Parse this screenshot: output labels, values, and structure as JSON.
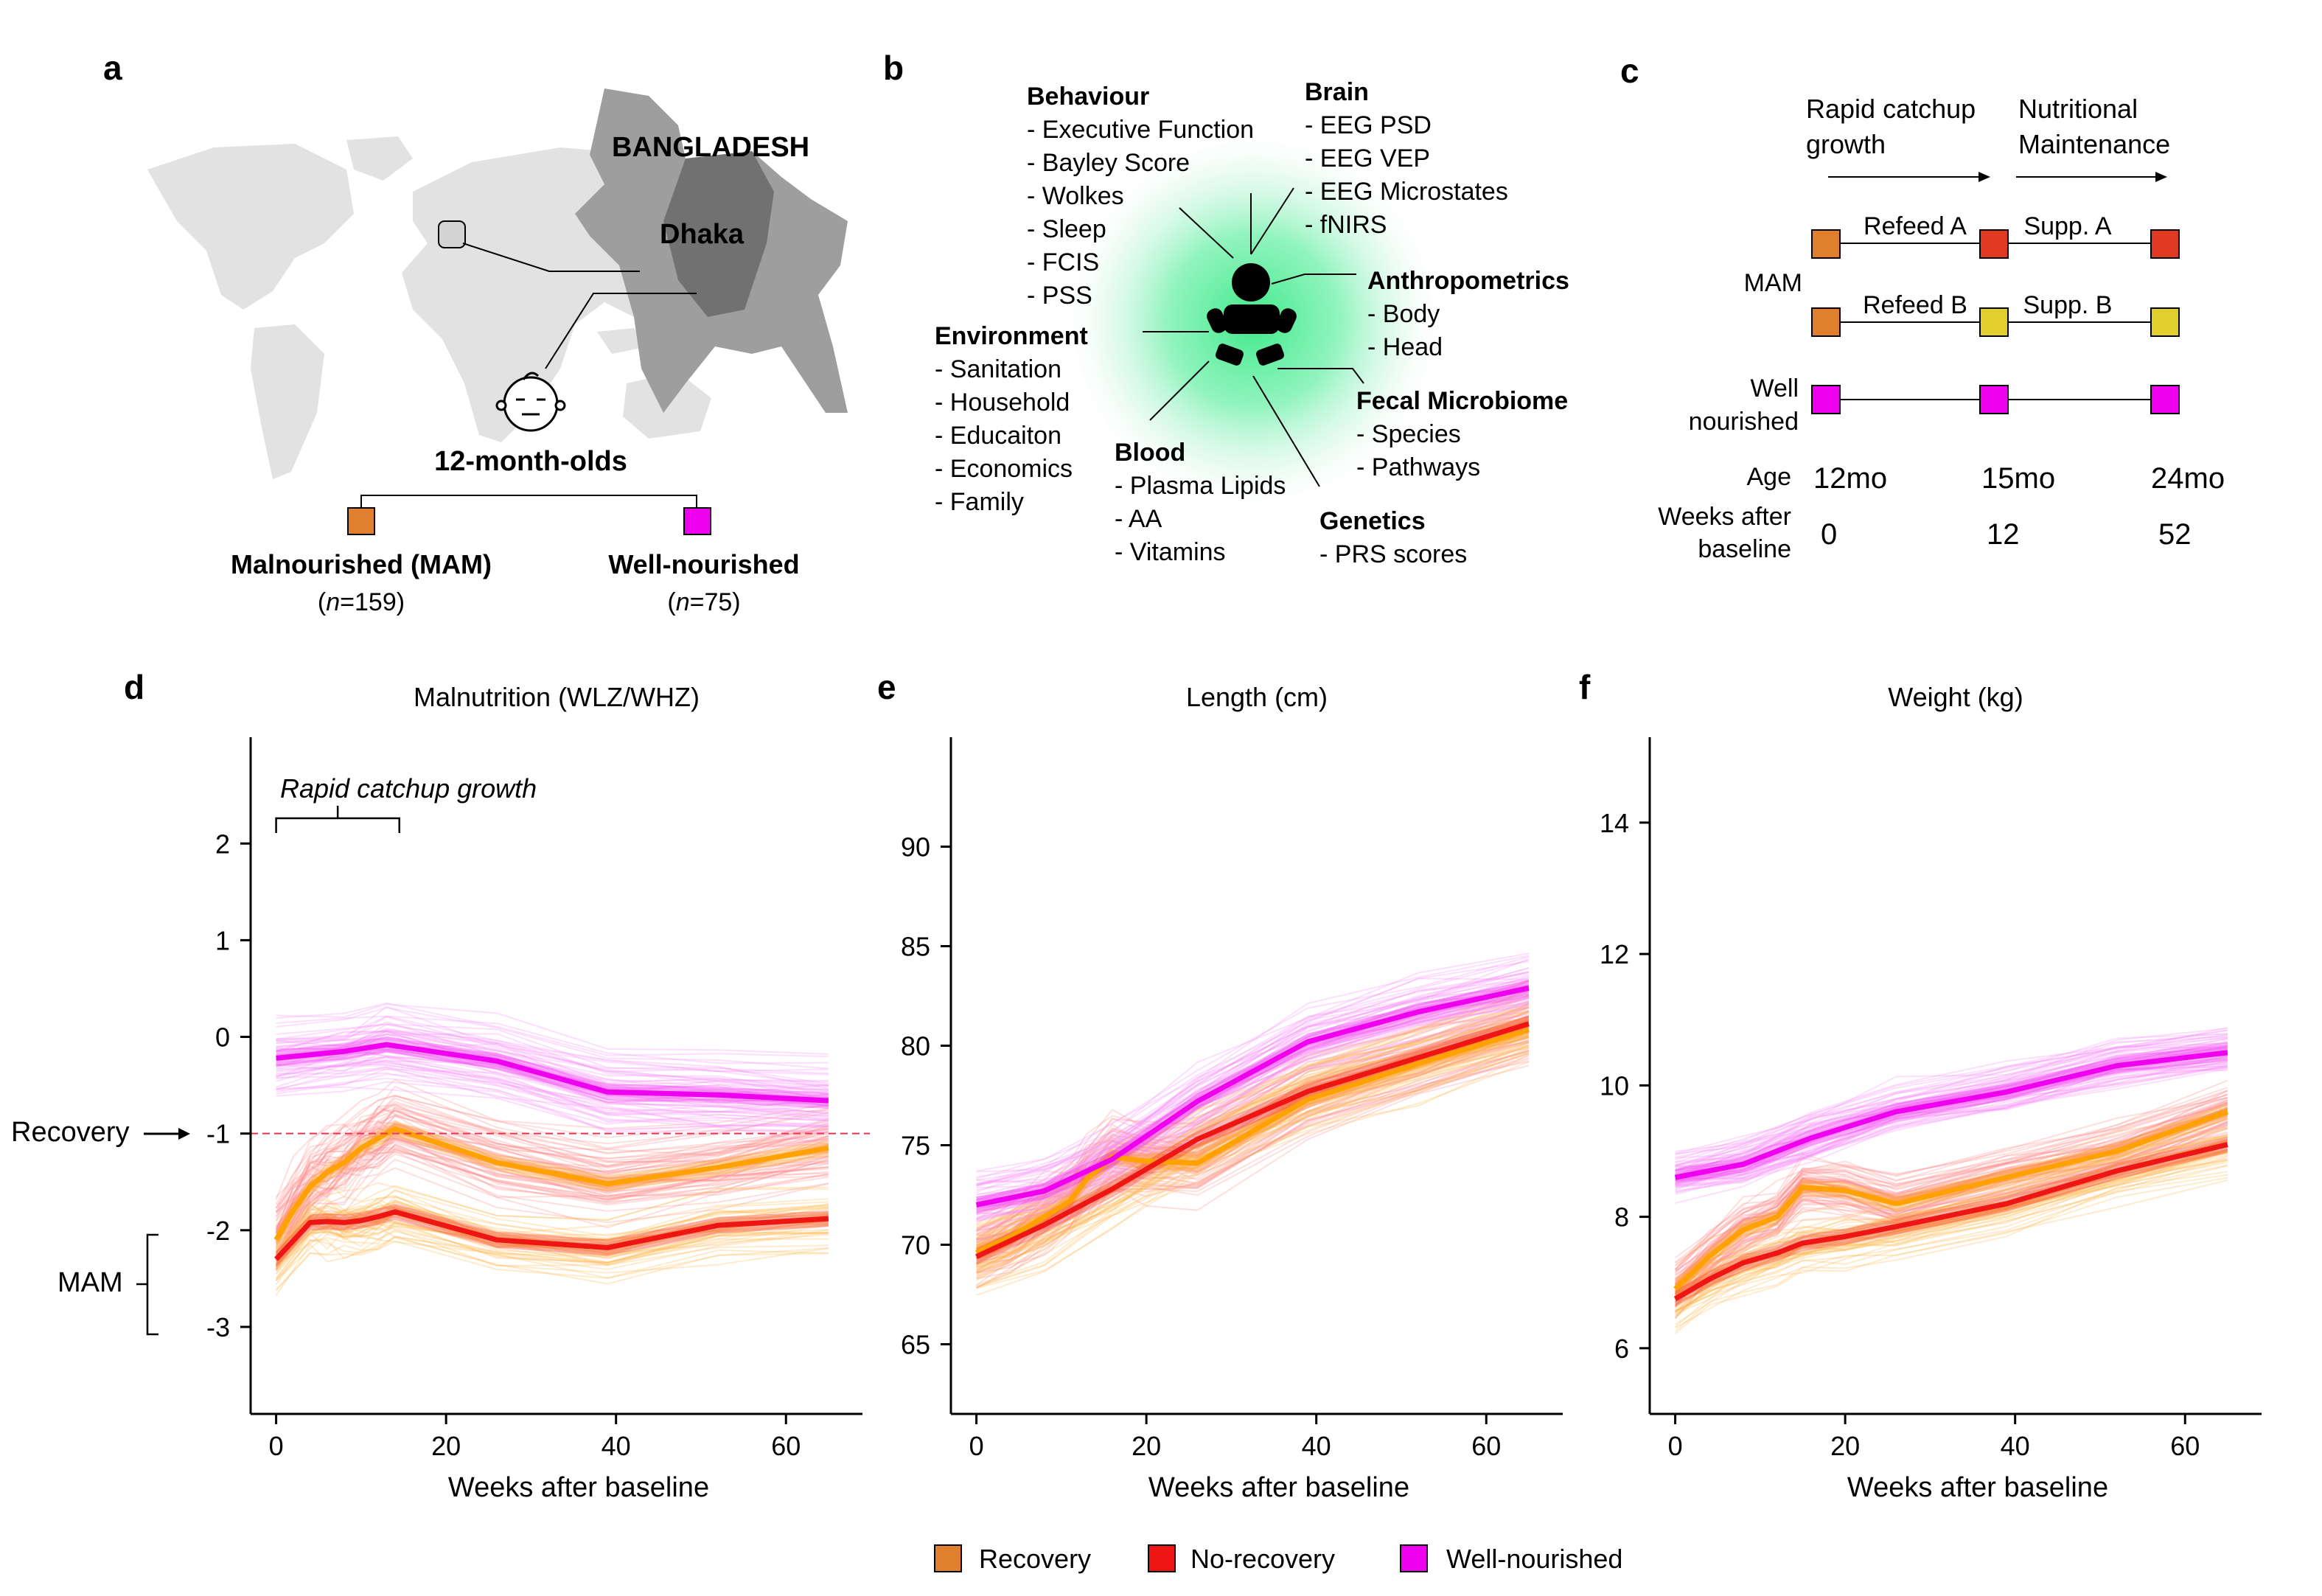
{
  "panel_letters": [
    "a",
    "b",
    "c",
    "d",
    "e",
    "f"
  ],
  "panel_a": {
    "country": "BANGLADESH",
    "city": "Dhaka",
    "cohort": "12-month-olds",
    "groups": [
      {
        "label": "Malnourished (MAM)",
        "n_prefix": "(",
        "n_italic": "n",
        "n_suffix": "=159)",
        "color": "#e07f2d"
      },
      {
        "label": "Well-nourished",
        "n_prefix": "(",
        "n_italic": "n",
        "n_suffix": "=75)",
        "color": "#ee00ee"
      }
    ]
  },
  "panel_b": {
    "groups": [
      {
        "title": "Behaviour",
        "items": [
          "- Executive Function",
          "- Bayley Score",
          "- Wolkes",
          "- Sleep",
          "- FCIS",
          "- PSS"
        ]
      },
      {
        "title": "Brain",
        "items": [
          "- EEG PSD",
          "- EEG VEP",
          "- EEG Microstates",
          "- fNIRS"
        ]
      },
      {
        "title": "Anthropometrics",
        "items": [
          "- Body",
          "- Head"
        ]
      },
      {
        "title": "Fecal Microbiome",
        "items": [
          "- Species",
          "- Pathways"
        ]
      },
      {
        "title": "Genetics",
        "items": [
          "- PRS scores"
        ]
      },
      {
        "title": "Blood",
        "items": [
          "- Plasma Lipids",
          "- AA",
          "- Vitamins"
        ]
      },
      {
        "title": "Environment",
        "items": [
          "- Sanitation",
          "- Household",
          "- Educaiton",
          "- Economics",
          "- Family"
        ]
      }
    ],
    "halo_color": "#3ee98a",
    "icon_name": "baby-icon"
  },
  "panel_c": {
    "phase1": [
      "Rapid catchup",
      "growth"
    ],
    "phase2": [
      "Nutritional",
      "Maintenance"
    ],
    "mam_label": "MAM",
    "refeed_a": "Refeed A",
    "refeed_b": "Refeed B",
    "supp_a": "Supp. A",
    "supp_b": "Supp. B",
    "well_label": [
      "Well",
      "nourished"
    ],
    "age_label": "Age",
    "ages": [
      "12mo",
      "15mo",
      "24mo"
    ],
    "weeks_label": [
      "Weeks after",
      "baseline"
    ],
    "weeks": [
      "0",
      "12",
      "52"
    ],
    "colors": {
      "orange": "#e07f2d",
      "red": "#e03a22",
      "yellow": "#e0cf2c",
      "magenta": "#ee00ee"
    }
  },
  "chart_data": [
    {
      "type": "line",
      "panel": "d",
      "title": "Malnutrition (WLZ/WHZ)",
      "xlabel": "Weeks after baseline",
      "ylabel": "",
      "xlim": [
        -3,
        69
      ],
      "ylim": [
        -3.9,
        3.1
      ],
      "xticks": [
        0,
        20,
        40,
        60
      ],
      "yticks": [
        2,
        1,
        0,
        -1,
        -2,
        -3
      ],
      "annotations": {
        "catchup": "Rapid catchup growth",
        "recovery": "Recovery",
        "recovery_y": -1,
        "mam": "MAM",
        "catchup_range": [
          0,
          14.5
        ]
      },
      "series": [
        {
          "name": "Recovery",
          "color": "#ffa100",
          "x": [
            0,
            2,
            4,
            6,
            8,
            10,
            12,
            14,
            26,
            39,
            52,
            65
          ],
          "y": [
            -2.1,
            -1.8,
            -1.55,
            -1.4,
            -1.3,
            -1.15,
            -1.05,
            -0.95,
            -1.3,
            -1.52,
            -1.35,
            -1.15
          ]
        },
        {
          "name": "No-recovery",
          "color": "#ee1515",
          "x": [
            0,
            4,
            6,
            8,
            10,
            12,
            14,
            26,
            39,
            52,
            65
          ],
          "y": [
            -2.3,
            -1.92,
            -1.91,
            -1.92,
            -1.9,
            -1.86,
            -1.81,
            -2.1,
            -2.18,
            -1.95,
            -1.88
          ]
        },
        {
          "name": "Well-nourished",
          "color": "#ee00ee",
          "x": [
            0,
            8,
            13,
            26,
            39,
            52,
            65
          ],
          "y": [
            -0.22,
            -0.15,
            -0.08,
            -0.25,
            -0.57,
            -0.6,
            -0.66
          ]
        }
      ]
    },
    {
      "type": "line",
      "panel": "e",
      "title": "Length (cm)",
      "xlabel": "Weeks after baseline",
      "ylabel": "",
      "xlim": [
        -3,
        69
      ],
      "ylim": [
        61.5,
        95.5
      ],
      "xticks": [
        0,
        20,
        40,
        60
      ],
      "yticks": [
        90,
        85,
        80,
        75,
        70,
        65
      ],
      "series": [
        {
          "name": "Recovery",
          "color": "#ffa100",
          "x": [
            0,
            4,
            8,
            11,
            13,
            16,
            20,
            26,
            39,
            52,
            65
          ],
          "y": [
            69.6,
            70.4,
            71.4,
            72.2,
            73.3,
            74.4,
            74.2,
            74.1,
            77.3,
            79.1,
            80.8
          ]
        },
        {
          "name": "No-recovery",
          "color": "#ee1515",
          "x": [
            0,
            8,
            16,
            26,
            39,
            52,
            65
          ],
          "y": [
            69.4,
            71.0,
            72.8,
            75.3,
            77.7,
            79.4,
            81.1
          ]
        },
        {
          "name": "Well-nourished",
          "color": "#ee00ee",
          "x": [
            0,
            8,
            16,
            26,
            39,
            52,
            65
          ],
          "y": [
            72.0,
            72.7,
            74.3,
            77.2,
            80.2,
            81.7,
            82.9
          ]
        }
      ]
    },
    {
      "type": "line",
      "panel": "f",
      "title": "Weight (kg)",
      "xlabel": "Weeks after baseline",
      "ylabel": "",
      "xlim": [
        -3,
        69
      ],
      "ylim": [
        5.0,
        15.3
      ],
      "xticks": [
        0,
        20,
        40,
        60
      ],
      "yticks": [
        14,
        12,
        10,
        8,
        6
      ],
      "series": [
        {
          "name": "Recovery",
          "color": "#ffa100",
          "x": [
            0,
            4,
            8,
            12,
            15,
            20,
            26,
            39,
            52,
            65
          ],
          "y": [
            6.9,
            7.4,
            7.8,
            8.0,
            8.45,
            8.4,
            8.2,
            8.6,
            9.0,
            9.6
          ]
        },
        {
          "name": "No-recovery",
          "color": "#ee1515",
          "x": [
            0,
            4,
            8,
            12,
            15,
            20,
            26,
            39,
            52,
            65
          ],
          "y": [
            6.75,
            7.05,
            7.3,
            7.45,
            7.6,
            7.7,
            7.85,
            8.2,
            8.7,
            9.1
          ]
        },
        {
          "name": "Well-nourished",
          "color": "#ee00ee",
          "x": [
            0,
            8,
            16,
            26,
            39,
            52,
            65
          ],
          "y": [
            8.6,
            8.8,
            9.2,
            9.6,
            9.9,
            10.3,
            10.5
          ]
        }
      ]
    }
  ],
  "legend": [
    {
      "label": "Recovery",
      "color": "#e07f2d"
    },
    {
      "label": "No-recovery",
      "color": "#ee1515"
    },
    {
      "label": "Well-nourished",
      "color": "#ee00ee"
    }
  ]
}
